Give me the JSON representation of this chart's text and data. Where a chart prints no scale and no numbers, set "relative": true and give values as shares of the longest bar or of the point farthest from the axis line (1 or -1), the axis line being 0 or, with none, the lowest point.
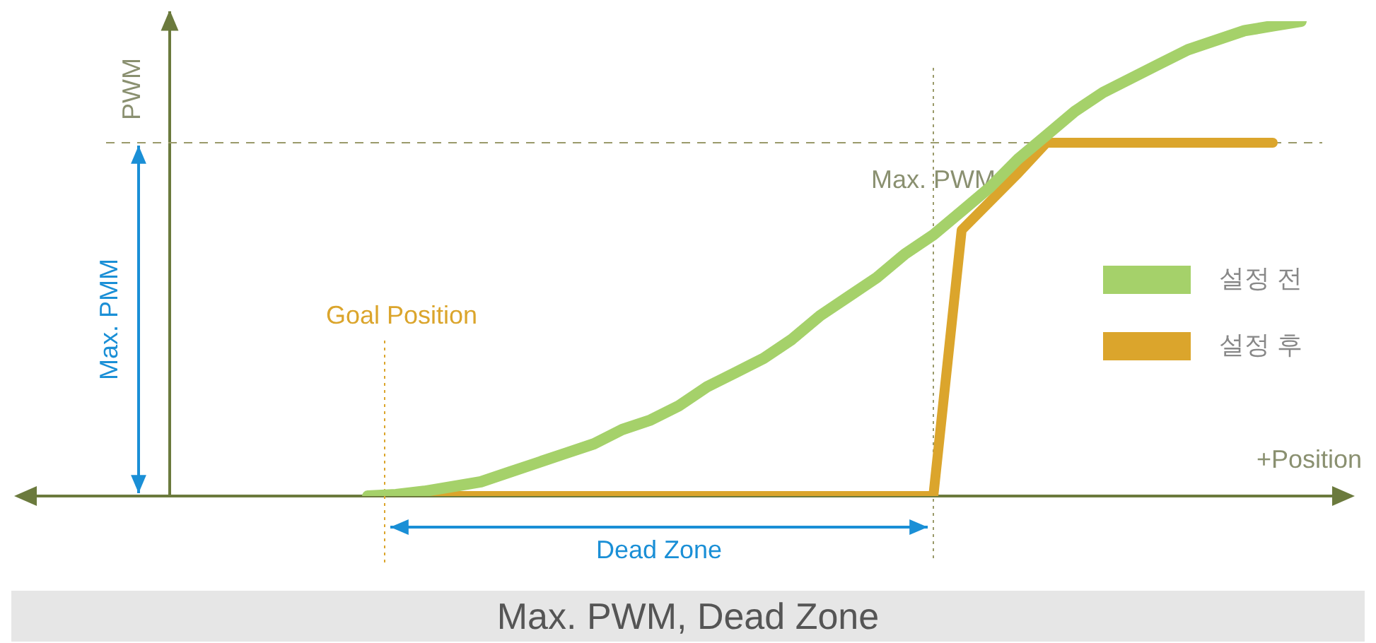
{
  "chart_data": {
    "type": "line",
    "title": "Max. PWM, Dead Zone",
    "xlabel": "+Position",
    "relative": true,
    "legend": "right",
    "marker": "none",
    "categories": [
      null,
      null,
      null,
      null,
      null,
      null,
      null,
      null,
      null,
      null,
      null,
      null,
      null,
      null,
      null,
      null,
      null,
      null,
      null,
      null,
      null,
      null,
      null,
      null,
      null,
      null,
      null,
      null,
      null,
      null,
      null,
      null,
      null,
      null
    ],
    "series": [
      {
        "name": "설정 전",
        "color": "#a5d16a",
        "values": [
          0,
          0.003,
          0.01,
          0.02,
          0.03,
          0.05,
          0.07,
          0.09,
          0.11,
          0.14,
          0.16,
          0.19,
          0.23,
          0.26,
          0.29,
          0.33,
          0.38,
          0.42,
          0.46,
          0.51,
          0.55,
          0.6,
          0.65,
          0.71,
          0.76,
          0.81,
          0.85,
          0.88,
          0.91,
          0.94,
          0.96,
          0.98,
          0.99,
          1
        ]
      },
      {
        "name": "설정 후",
        "color": "#dba52c",
        "values": [
          0,
          0,
          0,
          0,
          0,
          0,
          0,
          0,
          0,
          0,
          0,
          0,
          0,
          0,
          0,
          0,
          0,
          0,
          0,
          0,
          0,
          0.56,
          0.62,
          0.68,
          0.744,
          0.744,
          0.744,
          0.744,
          0.744,
          0.744,
          0.744,
          0.744,
          0.744,
          null
        ]
      }
    ],
    "ref_lines": [
      {
        "axis": "y",
        "value": 0.744,
        "color": "#9a9a6a",
        "line_style": "dashed"
      }
    ],
    "annotations": [
      "Goal Position",
      "Max. PWM",
      "Max. PMM",
      "Dead Zone",
      "PWM"
    ]
  }
}
